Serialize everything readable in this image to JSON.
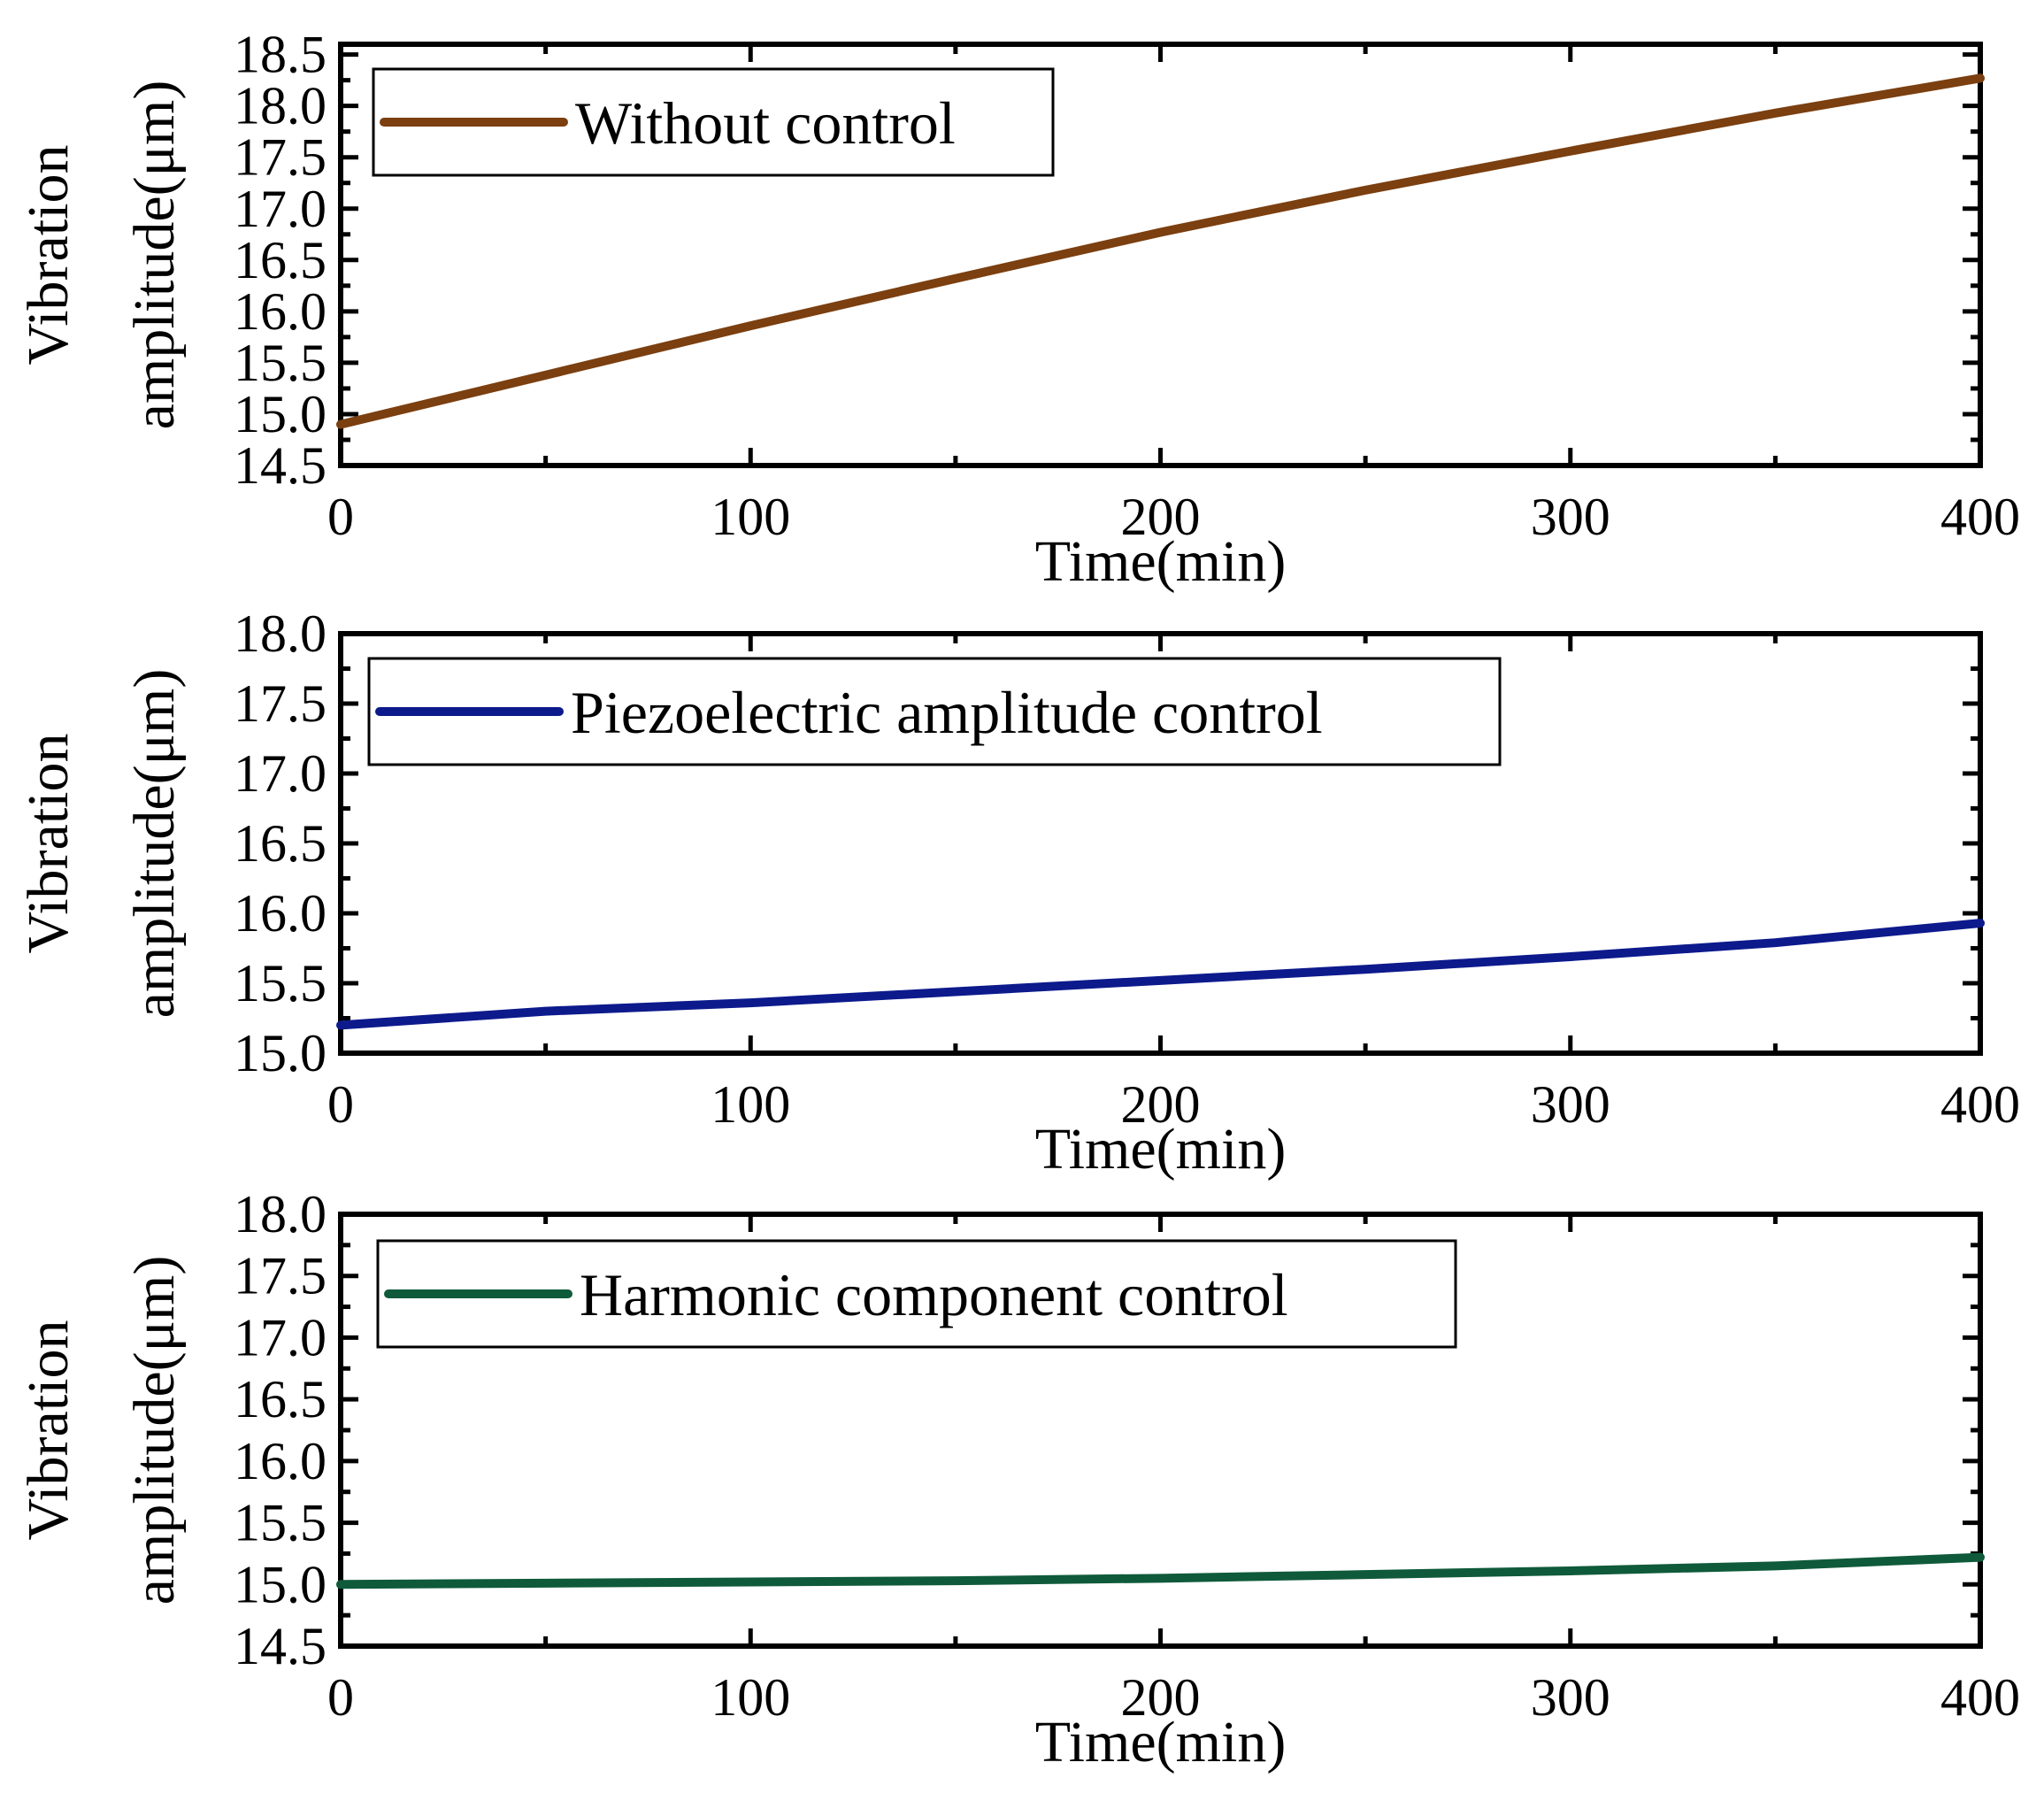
{
  "chart_data": [
    {
      "type": "line",
      "xlabel": "Time(min)",
      "ylabel_line1": "Vibration",
      "ylabel_line2": "amplitude(μm)",
      "xlim": [
        0,
        400
      ],
      "ylim": [
        14.5,
        18.6
      ],
      "xticks": [
        0,
        100,
        200,
        300,
        400
      ],
      "yticks": [
        14.5,
        15.0,
        15.5,
        16.0,
        16.5,
        17.0,
        17.5,
        18.0,
        18.5
      ],
      "ytick_labels": [
        "14.5",
        "15.0",
        "15.5",
        "16.0",
        "16.5",
        "17.0",
        "17.5",
        "18.0",
        "18.5"
      ],
      "legend_position": "top-left",
      "series": [
        {
          "name": "Without control",
          "color": "#7B3F10",
          "x": [
            0,
            50,
            100,
            150,
            200,
            250,
            300,
            350,
            400
          ],
          "y": [
            14.9,
            15.38,
            15.86,
            16.32,
            16.77,
            17.18,
            17.56,
            17.93,
            18.27
          ]
        }
      ]
    },
    {
      "type": "line",
      "xlabel": "Time(min)",
      "ylabel_line1": "Vibration",
      "ylabel_line2": "amplitude(μm)",
      "xlim": [
        0,
        400
      ],
      "ylim": [
        15.0,
        18.0
      ],
      "xticks": [
        0,
        100,
        200,
        300,
        400
      ],
      "yticks": [
        15.0,
        15.5,
        16.0,
        16.5,
        17.0,
        17.5,
        18.0
      ],
      "ytick_labels": [
        "15.0",
        "15.5",
        "16.0",
        "16.5",
        "17.0",
        "17.5",
        "18.0"
      ],
      "legend_position": "top-left",
      "series": [
        {
          "name": "Piezoelectric amplitude control",
          "color": "#0D1A8C",
          "x": [
            0,
            50,
            100,
            150,
            200,
            250,
            300,
            350,
            400
          ],
          "y": [
            15.2,
            15.3,
            15.36,
            15.44,
            15.52,
            15.6,
            15.69,
            15.79,
            15.93
          ]
        }
      ]
    },
    {
      "type": "line",
      "xlabel": "Time(min)",
      "ylabel_line1": "Vibration",
      "ylabel_line2": "amplitude(μm)",
      "xlim": [
        0,
        400
      ],
      "ylim": [
        14.5,
        18.0
      ],
      "xticks": [
        0,
        100,
        200,
        300,
        400
      ],
      "yticks": [
        14.5,
        15.0,
        15.5,
        16.0,
        16.5,
        17.0,
        17.5,
        18.0
      ],
      "ytick_labels": [
        "14.5",
        "15.0",
        "15.5",
        "16.0",
        "16.5",
        "17.0",
        "17.5",
        "18.0"
      ],
      "legend_position": "top-left",
      "series": [
        {
          "name": "Harmonic component control",
          "color": "#0F5A3A",
          "x": [
            0,
            50,
            100,
            150,
            200,
            250,
            300,
            350,
            400
          ],
          "y": [
            15.0,
            15.01,
            15.02,
            15.03,
            15.05,
            15.08,
            15.11,
            15.15,
            15.22
          ]
        }
      ]
    }
  ]
}
